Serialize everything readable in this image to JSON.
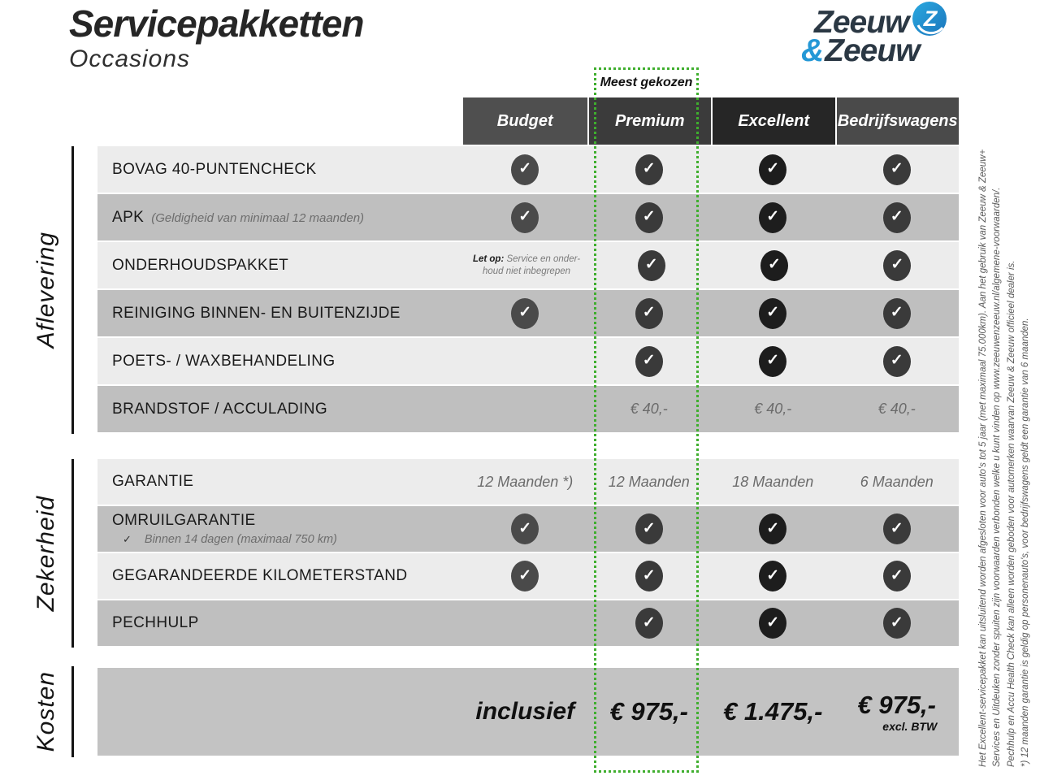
{
  "page": {
    "title": "Servicepakketten",
    "subtitle": "Occasions"
  },
  "logo": {
    "word_top": "Zeeuw",
    "ampersand": "&",
    "word_bottom": "Zeeuw",
    "icon": "z-swoosh-icon",
    "navy": "#2b3844",
    "blue": "#2498d6"
  },
  "highlight": {
    "label": "Meest gekozen",
    "border_color": "#3fae2e"
  },
  "check_icon": "✓",
  "columns": [
    {
      "label": "Budget",
      "header_color": "#4f4f4f",
      "check_color": "#4a4a4a"
    },
    {
      "label": "Premium",
      "header_color": "#3b3b3b",
      "check_color": "#3a3a3a"
    },
    {
      "label": "Excellent",
      "header_color": "#262626",
      "check_color": "#1d1d1d"
    },
    {
      "label": "Bedrijfswagens",
      "header_color": "#4a4a4a",
      "check_color": "#3a3a3a"
    }
  ],
  "sections": [
    {
      "label": "Aflevering",
      "rows": [
        {
          "label": "BOVAG 40-PUNTENCHECK",
          "cells": [
            "check",
            "check",
            "check",
            "check"
          ]
        },
        {
          "label": "APK",
          "label_note": "(Geldigheid van minimaal 12 maanden)",
          "cells": [
            "check",
            "check",
            "check",
            "check"
          ]
        },
        {
          "label": "ONDERHOUDSPAKKET",
          "cells": [
            {
              "note_bold": "Let op:",
              "note_lines": [
                "Service en onder-",
                "houd niet inbegrepen"
              ]
            },
            "check",
            "check",
            "check"
          ]
        },
        {
          "label": "REINIGING BINNEN- EN BUITENZIJDE",
          "cells": [
            "check",
            "check",
            "check",
            "check"
          ]
        },
        {
          "label": "POETS- / WAXBEHANDELING",
          "cells": [
            "",
            "check",
            "check",
            "check"
          ]
        },
        {
          "label": "BRANDSTOF / ACCULADING",
          "cells": [
            "",
            "€ 40,-",
            "€ 40,-",
            "€ 40,-"
          ]
        }
      ]
    },
    {
      "label": "Zekerheid",
      "rows": [
        {
          "label": "GARANTIE",
          "cells": [
            "12 Maanden *)",
            "12 Maanden",
            "18 Maanden",
            "6 Maanden"
          ]
        },
        {
          "label": "OMRUILGARANTIE",
          "sub_check": "✓",
          "sub_note": "Binnen 14 dagen (maximaal 750 km)",
          "cells": [
            "check",
            "check",
            "check",
            "check"
          ]
        },
        {
          "label": "GEGARANDEERDE KILOMETERSTAND",
          "cells": [
            "check",
            "check",
            "check",
            "check"
          ]
        },
        {
          "label": "PECHHULP",
          "cells": [
            "",
            "check",
            "check",
            "check"
          ]
        }
      ]
    }
  ],
  "kosten": {
    "label": "Kosten",
    "cells": [
      {
        "text": "inclusief"
      },
      {
        "text": "€ 975,-"
      },
      {
        "text": "€ 1.475,-"
      },
      {
        "text": "€ 975,-",
        "sub": "excl. BTW"
      }
    ]
  },
  "footnotes": [
    "Het Excellent-servicepakket kan uitsluitend worden afgesloten voor auto's tot 5 jaar (met maximaal 75.000km). Aan het gebruik van Zeeuw & Zeeuw+",
    "Services en Uitdeuken zonder spuiten zijn voorwaarden verbonden welke u kunt vinden op www.zeeuwenzeeuw.nl/algemene-voorwaarden/.",
    "Pechhulp en Accu Health Check kan alleen worden geboden voor automerken waarvan Zeeuw & Zeeuw officieel dealer is.",
    "*) 12 maanden garantie is geldig op personenauto's, voor bedrijfswagens geldt een garantie van 6 maanden."
  ]
}
